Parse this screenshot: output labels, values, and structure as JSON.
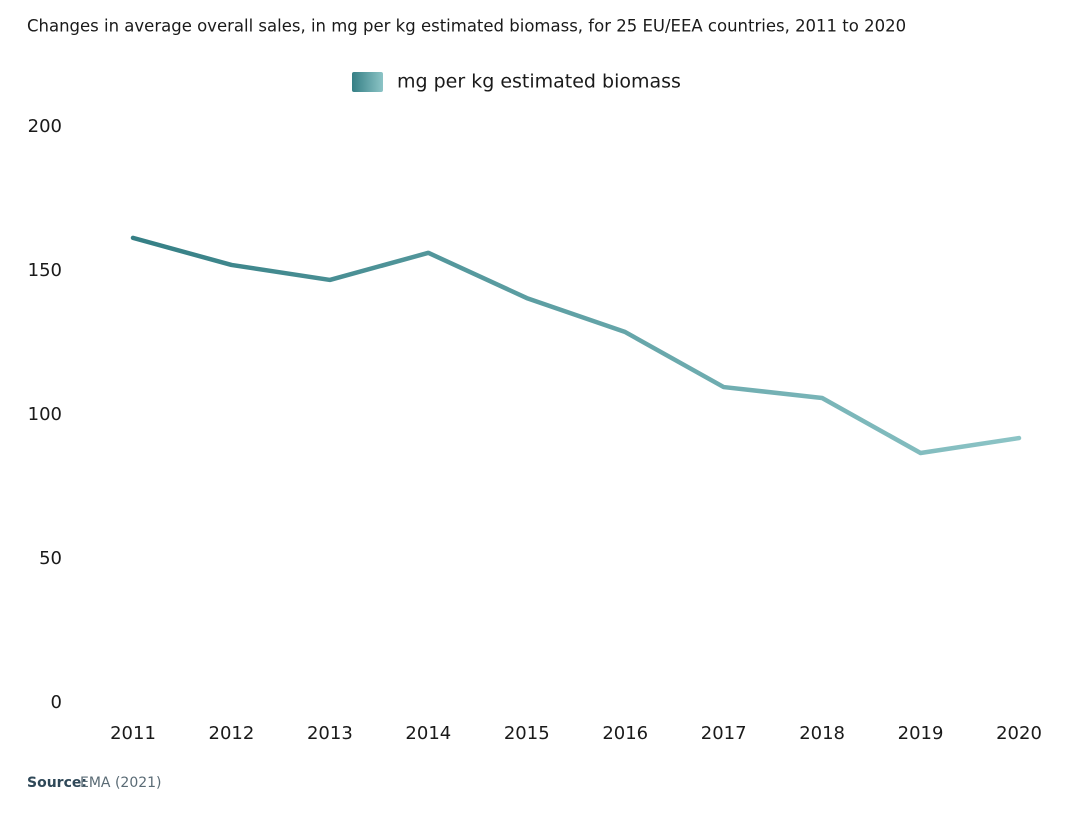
{
  "chart_data": {
    "type": "line",
    "title": "Changes in average overall sales, in mg per kg estimated biomass, for 25 EU/EEA countries, 2011 to 2020",
    "categories": [
      "2011",
      "2012",
      "2013",
      "2014",
      "2015",
      "2016",
      "2017",
      "2018",
      "2019",
      "2020"
    ],
    "series": [
      {
        "name": "mg per kg estimated biomass",
        "color": [
          "#357f85",
          "#8cc4c6"
        ],
        "values": [
          161.5,
          152.1,
          146.9,
          156.3,
          140.6,
          128.8,
          109.7,
          105.9,
          86.8,
          92.0
        ]
      }
    ],
    "ylim": [
      0,
      200
    ],
    "yticks": [
      0,
      50,
      100,
      150,
      200
    ],
    "grid": false,
    "source_label": "Source:",
    "source_text": "EMA (2021)"
  }
}
